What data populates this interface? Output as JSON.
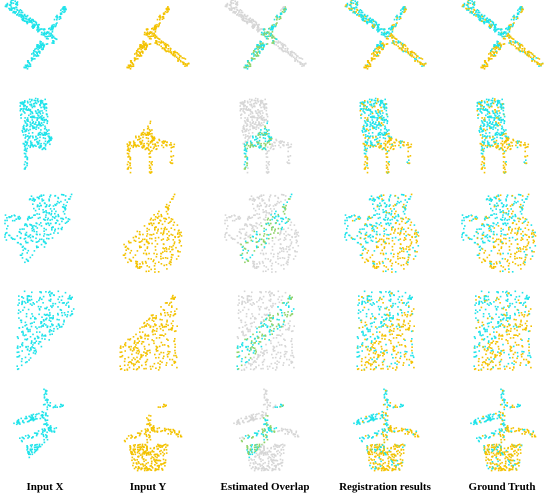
{
  "columns": [
    "Input X",
    "Input Y",
    "Estimated Overlap",
    "Registration results",
    "Ground Truth"
  ]
}
